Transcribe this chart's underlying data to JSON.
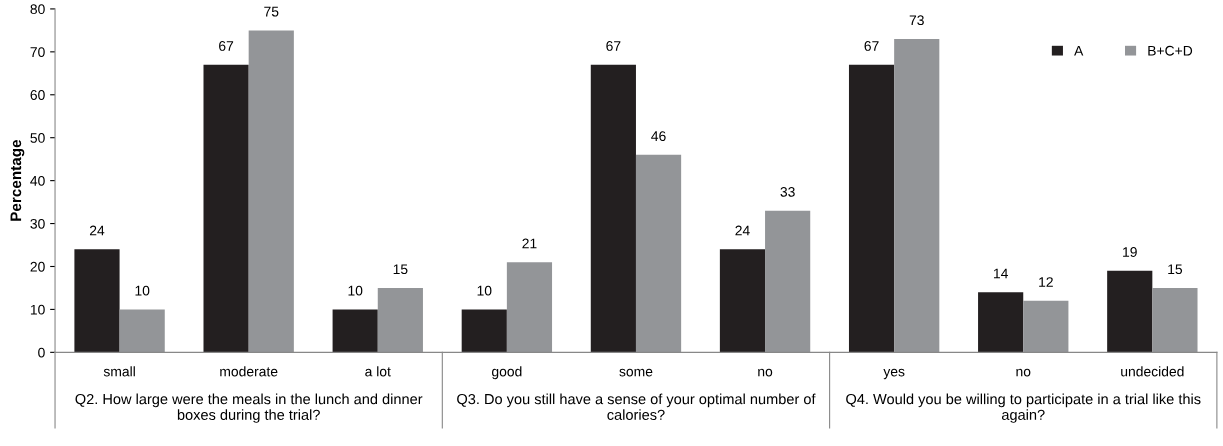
{
  "chart_data": {
    "type": "bar",
    "ylabel": "Percentage",
    "categories": [
      "small",
      "moderate",
      "a lot",
      "good",
      "some",
      "no",
      "yes",
      "no",
      "undecided"
    ],
    "series": [
      {
        "name": "A",
        "color": "#231f20",
        "values": [
          24,
          67,
          10,
          10,
          67,
          24,
          67,
          14,
          19
        ]
      },
      {
        "name": "B+C+D",
        "color": "#939598",
        "values": [
          10,
          75,
          15,
          21,
          46,
          33,
          73,
          12,
          15
        ]
      }
    ],
    "ylim": [
      0,
      80
    ],
    "yticks": [
      0,
      10,
      20,
      30,
      40,
      50,
      60,
      70,
      80
    ],
    "grid": false,
    "legend": "top right",
    "data_labels": true,
    "annotations": [
      "Q2. How large were the meals in the lunch and dinner boxes during the trial?",
      "Q3. Do you still have a sense of your optimal number of calories?",
      "Q4. Would you be willing to participate in a trial like this again?"
    ]
  }
}
